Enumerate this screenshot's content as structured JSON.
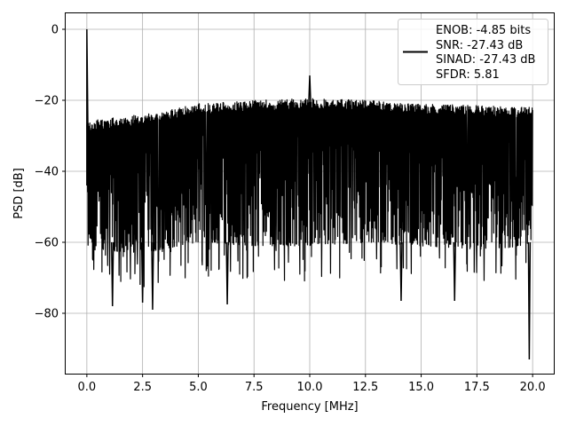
{
  "chart_data": {
    "type": "line",
    "title": "",
    "xlabel": "Frequency [MHz]",
    "ylabel": "PSD [dB]",
    "xlim": [
      -0.95,
      20.95
    ],
    "ylim": [
      -97,
      4.5
    ],
    "x_ticks": [
      "0.0",
      "2.5",
      "5.0",
      "7.5",
      "10.0",
      "12.5",
      "15.0",
      "17.5",
      "20.0"
    ],
    "y_ticks": [
      "0",
      "−20",
      "−40",
      "−60",
      "−80"
    ],
    "grid": true,
    "legend_placement": "upper right",
    "line_color": "#000000",
    "series": [
      {
        "name": "ENOB: -4.85 bits\nSNR: -27.43 dB\nSINAD: -27.43 dB\nSFDR: 5.81",
        "x_range": [
          0.0,
          20.0
        ],
        "description_points": {
          "peak_x": 0.0,
          "peak_y": 0.0,
          "spur_x": 10.0,
          "spur_y": -13.0,
          "min_x": 19.9,
          "min_y": -93.0
        },
        "upper_envelope": [
          [
            0.0,
            -26
          ],
          [
            1.0,
            -25
          ],
          [
            2.5,
            -24
          ],
          [
            5.0,
            -21
          ],
          [
            7.5,
            -20
          ],
          [
            10.0,
            -19.5
          ],
          [
            12.5,
            -20
          ],
          [
            15.0,
            -21
          ],
          [
            17.5,
            -21.5
          ],
          [
            20.0,
            -22
          ]
        ],
        "lower_envelope": [
          [
            0.0,
            -62
          ],
          [
            2.5,
            -63
          ],
          [
            5.0,
            -60
          ],
          [
            7.5,
            -61
          ],
          [
            10.0,
            -61
          ],
          [
            12.5,
            -60
          ],
          [
            15.0,
            -61
          ],
          [
            17.5,
            -62
          ],
          [
            20.0,
            -61
          ]
        ],
        "deep_dips": [
          [
            1.15,
            -78
          ],
          [
            2.5,
            -77
          ],
          [
            2.95,
            -79
          ],
          [
            6.3,
            -77.5
          ],
          [
            14.1,
            -76.5
          ],
          [
            16.5,
            -76.5
          ],
          [
            19.85,
            -93
          ]
        ]
      }
    ],
    "legend": {
      "lines": [
        "ENOB: -4.85 bits",
        "SNR: -27.43 dB",
        "SINAD: -27.43 dB",
        "SFDR: 5.81"
      ]
    }
  }
}
